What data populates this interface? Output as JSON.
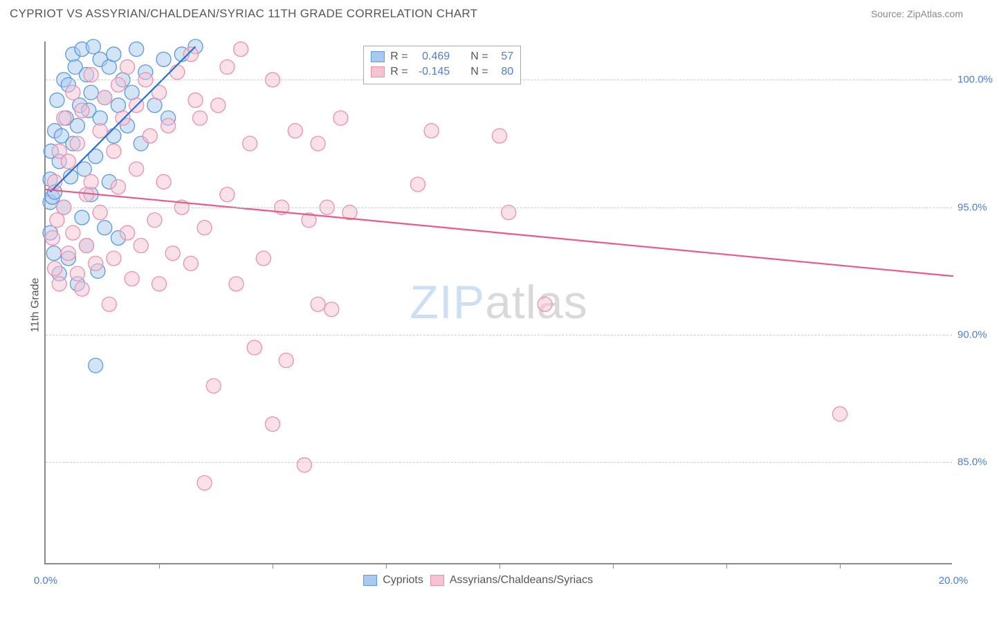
{
  "header": {
    "title": "CYPRIOT VS ASSYRIAN/CHALDEAN/SYRIAC 11TH GRADE CORRELATION CHART",
    "source": "Source: ZipAtlas.com"
  },
  "chart": {
    "type": "scatter",
    "y_axis_label": "11th Grade",
    "watermark_zip": "ZIP",
    "watermark_atlas": "atlas",
    "background_color": "#ffffff",
    "grid_color": "#cccccc",
    "axis_color": "#888888",
    "tick_label_color": "#4a7fd6",
    "xlim": [
      0,
      20
    ],
    "ylim": [
      81,
      101.5
    ],
    "x_ticks": [
      0,
      20
    ],
    "x_tick_minors": [
      2.5,
      5,
      7.5,
      10,
      12.5,
      15,
      17.5
    ],
    "x_tick_labels": [
      "0.0%",
      "20.0%"
    ],
    "y_ticks": [
      85,
      90,
      95,
      100
    ],
    "y_tick_labels": [
      "85.0%",
      "90.0%",
      "95.0%",
      "100.0%"
    ],
    "marker_radius": 10.5,
    "marker_opacity": 0.5,
    "line_width": 2.2,
    "series": [
      {
        "name": "Cypriots",
        "fill_color": "#a9c9ef",
        "stroke_color": "#5a98e0",
        "line_color": "#2c6fd4",
        "R": "0.469",
        "N": "57",
        "regression": {
          "x1": 0.1,
          "y1": 95.6,
          "x2": 3.3,
          "y2": 101.3
        },
        "points": [
          [
            0.1,
            95.2
          ],
          [
            0.1,
            96.1
          ],
          [
            0.1,
            94.0
          ],
          [
            0.15,
            95.4
          ],
          [
            0.12,
            97.2
          ],
          [
            0.18,
            93.2
          ],
          [
            0.2,
            95.6
          ],
          [
            0.2,
            98.0
          ],
          [
            0.25,
            99.2
          ],
          [
            0.3,
            96.8
          ],
          [
            0.3,
            92.4
          ],
          [
            0.35,
            97.8
          ],
          [
            0.4,
            100.0
          ],
          [
            0.4,
            95.0
          ],
          [
            0.45,
            98.5
          ],
          [
            0.5,
            99.8
          ],
          [
            0.5,
            93.0
          ],
          [
            0.55,
            96.2
          ],
          [
            0.6,
            101.0
          ],
          [
            0.6,
            97.5
          ],
          [
            0.65,
            100.5
          ],
          [
            0.7,
            98.2
          ],
          [
            0.7,
            92.0
          ],
          [
            0.75,
            99.0
          ],
          [
            0.8,
            94.6
          ],
          [
            0.8,
            101.2
          ],
          [
            0.85,
            96.5
          ],
          [
            0.9,
            100.2
          ],
          [
            0.9,
            93.5
          ],
          [
            0.95,
            98.8
          ],
          [
            1.0,
            99.5
          ],
          [
            1.0,
            95.5
          ],
          [
            1.05,
            101.3
          ],
          [
            1.1,
            97.0
          ],
          [
            1.15,
            92.5
          ],
          [
            1.2,
            100.8
          ],
          [
            1.2,
            98.5
          ],
          [
            1.3,
            99.3
          ],
          [
            1.3,
            94.2
          ],
          [
            1.4,
            100.5
          ],
          [
            1.4,
            96.0
          ],
          [
            1.5,
            101.0
          ],
          [
            1.5,
            97.8
          ],
          [
            1.6,
            99.0
          ],
          [
            1.6,
            93.8
          ],
          [
            1.7,
            100.0
          ],
          [
            1.8,
            98.2
          ],
          [
            1.9,
            99.5
          ],
          [
            2.0,
            101.2
          ],
          [
            2.1,
            97.5
          ],
          [
            2.2,
            100.3
          ],
          [
            2.4,
            99.0
          ],
          [
            2.6,
            100.8
          ],
          [
            2.7,
            98.5
          ],
          [
            3.0,
            101.0
          ],
          [
            1.1,
            88.8
          ],
          [
            3.3,
            101.3
          ]
        ]
      },
      {
        "name": "Assyrians/Chaldeans/Syriacs",
        "fill_color": "#f5c3d2",
        "stroke_color": "#ec8fad",
        "line_color": "#e85a8a",
        "R": "-0.145",
        "N": "80",
        "regression": {
          "x1": 0.0,
          "y1": 95.7,
          "x2": 20.0,
          "y2": 92.3
        },
        "points": [
          [
            0.15,
            93.8
          ],
          [
            0.2,
            92.6
          ],
          [
            0.2,
            96.0
          ],
          [
            0.25,
            94.5
          ],
          [
            0.3,
            97.2
          ],
          [
            0.3,
            92.0
          ],
          [
            0.4,
            95.0
          ],
          [
            0.4,
            98.5
          ],
          [
            0.5,
            93.2
          ],
          [
            0.5,
            96.8
          ],
          [
            0.6,
            99.5
          ],
          [
            0.6,
            94.0
          ],
          [
            0.7,
            92.4
          ],
          [
            0.7,
            97.5
          ],
          [
            0.8,
            91.8
          ],
          [
            0.8,
            98.8
          ],
          [
            0.9,
            95.5
          ],
          [
            0.9,
            93.5
          ],
          [
            1.0,
            100.2
          ],
          [
            1.0,
            96.0
          ],
          [
            1.1,
            92.8
          ],
          [
            1.2,
            98.0
          ],
          [
            1.2,
            94.8
          ],
          [
            1.3,
            99.3
          ],
          [
            1.4,
            91.2
          ],
          [
            1.5,
            97.2
          ],
          [
            1.5,
            93.0
          ],
          [
            1.6,
            99.8
          ],
          [
            1.6,
            95.8
          ],
          [
            1.7,
            98.5
          ],
          [
            1.8,
            94.0
          ],
          [
            1.8,
            100.5
          ],
          [
            1.9,
            92.2
          ],
          [
            2.0,
            99.0
          ],
          [
            2.0,
            96.5
          ],
          [
            2.1,
            93.5
          ],
          [
            2.2,
            100.0
          ],
          [
            2.3,
            97.8
          ],
          [
            2.4,
            94.5
          ],
          [
            2.5,
            92.0
          ],
          [
            2.5,
            99.5
          ],
          [
            2.6,
            96.0
          ],
          [
            2.7,
            98.2
          ],
          [
            2.8,
            93.2
          ],
          [
            2.9,
            100.3
          ],
          [
            3.0,
            95.0
          ],
          [
            3.2,
            101.0
          ],
          [
            3.2,
            92.8
          ],
          [
            3.4,
            98.5
          ],
          [
            3.5,
            94.2
          ],
          [
            3.5,
            84.2
          ],
          [
            3.7,
            88.0
          ],
          [
            3.8,
            99.0
          ],
          [
            4.0,
            95.5
          ],
          [
            4.0,
            100.5
          ],
          [
            4.2,
            92.0
          ],
          [
            4.3,
            101.2
          ],
          [
            4.5,
            97.5
          ],
          [
            4.6,
            89.5
          ],
          [
            4.8,
            93.0
          ],
          [
            5.0,
            100.0
          ],
          [
            5.0,
            86.5
          ],
          [
            5.2,
            95.0
          ],
          [
            5.3,
            89.0
          ],
          [
            5.5,
            98.0
          ],
          [
            5.7,
            84.9
          ],
          [
            5.8,
            94.5
          ],
          [
            6.0,
            91.2
          ],
          [
            6.0,
            97.5
          ],
          [
            6.2,
            95.0
          ],
          [
            6.3,
            91.0
          ],
          [
            6.5,
            98.5
          ],
          [
            6.7,
            94.8
          ],
          [
            8.2,
            95.9
          ],
          [
            8.5,
            98.0
          ],
          [
            10.0,
            97.8
          ],
          [
            10.2,
            94.8
          ],
          [
            11.0,
            91.2
          ],
          [
            17.5,
            86.9
          ],
          [
            3.3,
            99.2
          ]
        ]
      }
    ]
  },
  "legend_top": {
    "r_label": "R =",
    "n_label": "N ="
  },
  "legend_bottom": {
    "items": [
      "Cypriots",
      "Assyrians/Chaldeans/Syriacs"
    ]
  }
}
